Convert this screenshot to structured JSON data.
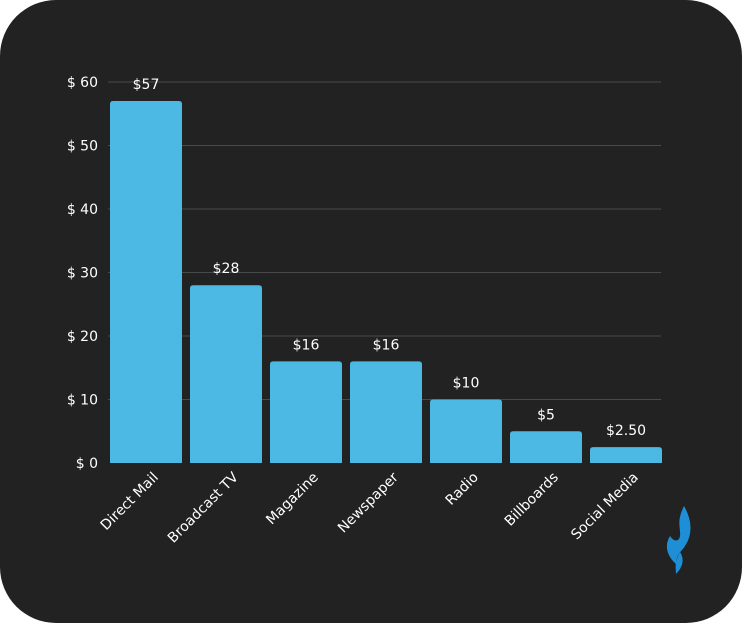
{
  "chart_data": {
    "type": "bar",
    "categories": [
      "Direct Mail",
      "Broadcast TV",
      "Magazine",
      "Newspaper",
      "Radio",
      "Billboards",
      "Social Media"
    ],
    "values": [
      57,
      28,
      16,
      16,
      10,
      5,
      2.5
    ],
    "data_labels": [
      "$57",
      "$28",
      "$16",
      "$16",
      "$10",
      "$5",
      "$2.50"
    ],
    "title": "",
    "xlabel": "",
    "ylabel": "",
    "ylim": [
      0,
      60
    ],
    "y_ticks": [
      0,
      10,
      20,
      30,
      40,
      50,
      60
    ],
    "y_tick_labels": [
      "$ 0",
      "$ 10",
      "$ 20",
      "$ 30",
      "$ 40",
      "$ 50",
      "$ 60"
    ],
    "grid": true,
    "legend": "none"
  },
  "colors": {
    "background": "#222222",
    "bar": "#4BB9E4",
    "grid": "#4a4a4a",
    "text": "#ffffff",
    "logo": "#1E8FD6"
  },
  "logo": {
    "icon": "flame-logo-icon"
  }
}
